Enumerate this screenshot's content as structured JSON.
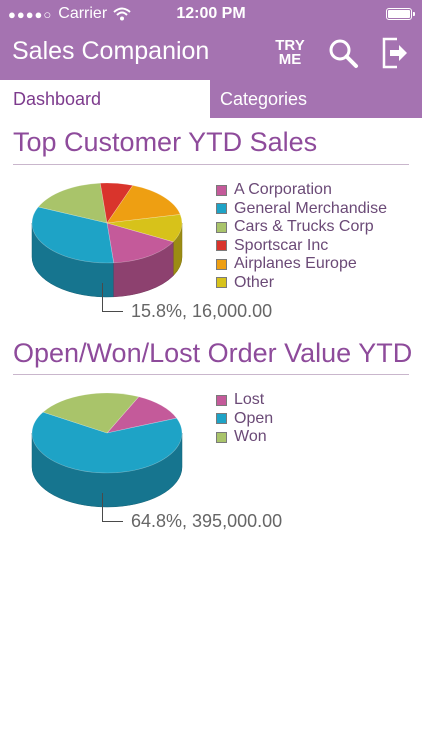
{
  "status_bar": {
    "signal_dots": "●●●●○",
    "carrier": "Carrier",
    "time": "12:00 PM"
  },
  "header": {
    "title": "Sales Companion",
    "try_me_line1": "TRY",
    "try_me_line2": "ME",
    "icons": [
      "search-icon",
      "logout-icon"
    ]
  },
  "tabs": [
    {
      "label": "Dashboard",
      "selected": true
    },
    {
      "label": "Categories",
      "selected": false
    }
  ],
  "colors": {
    "header_bg": "#a573b1",
    "accent_text": "#8e4b9b"
  },
  "sections": [
    {
      "title": "Top Customer YTD Sales",
      "callout": "15.8%, 16,000.00",
      "legend": [
        {
          "label": "A Corporation",
          "color": "#c45a9a"
        },
        {
          "label": "General Merchandise",
          "color": "#1ea3c6"
        },
        {
          "label": "Cars & Trucks Corp",
          "color": "#a9c46a"
        },
        {
          "label": "Sportscar Inc",
          "color": "#d9342c"
        },
        {
          "label": "Airplanes Europe",
          "color": "#ee9f12"
        },
        {
          "label": "Other",
          "color": "#d7c21a"
        }
      ]
    },
    {
      "title": "Open/Won/Lost Order Value YTD",
      "callout": "64.8%, 395,000.00",
      "legend": [
        {
          "label": "Lost",
          "color": "#c45a9a"
        },
        {
          "label": "Open",
          "color": "#1ea3c6"
        },
        {
          "label": "Won",
          "color": "#a9c46a"
        }
      ]
    }
  ],
  "chart_data": [
    {
      "type": "pie",
      "title": "Top Customer YTD Sales",
      "labels": [
        "A Corporation",
        "General Merchandise",
        "Cars & Trucks Corp",
        "Sportscar Inc",
        "Airplanes Europe",
        "Other"
      ],
      "values": [
        15.8,
        33.0,
        17.0,
        7.0,
        16.0,
        11.2
      ],
      "colors": [
        "#c45a9a",
        "#1ea3c6",
        "#a9c46a",
        "#d9342c",
        "#ee9f12",
        "#d7c21a"
      ],
      "highlighted": {
        "label": "A Corporation",
        "percent": 15.8,
        "value": 16000.0
      },
      "legend_position": "right"
    },
    {
      "type": "pie",
      "title": "Open/Won/Lost Order Value YTD",
      "labels": [
        "Lost",
        "Open",
        "Won"
      ],
      "values": [
        12.0,
        64.8,
        23.2
      ],
      "colors": [
        "#c45a9a",
        "#1ea3c6",
        "#a9c46a"
      ],
      "highlighted": {
        "label": "Open",
        "percent": 64.8,
        "value": 395000.0
      },
      "legend_position": "right"
    }
  ]
}
